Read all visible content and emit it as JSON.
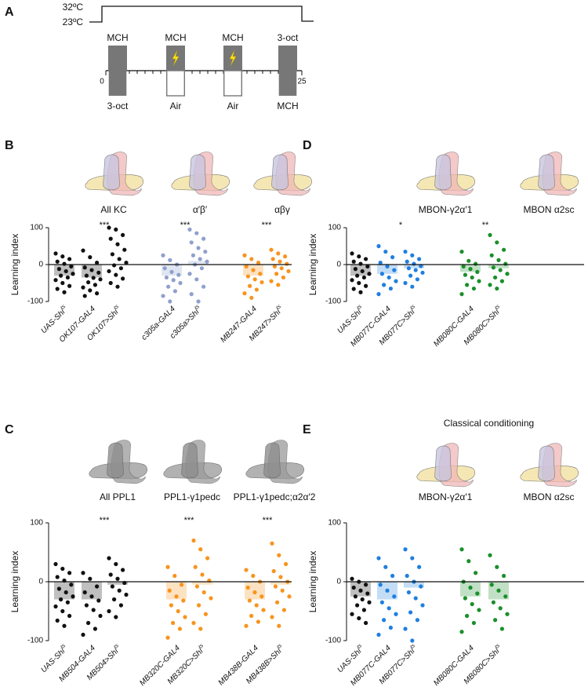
{
  "protocol": {
    "panel": "A",
    "temps": [
      "32ºC",
      "23ºC"
    ],
    "top_labels": [
      "MCH",
      "MCH",
      "MCH",
      "3-oct"
    ],
    "bottom_labels": [
      "3-oct",
      "Air",
      "Air",
      "MCH"
    ],
    "xlim": [
      0,
      25
    ],
    "xticks": [
      0,
      25
    ]
  },
  "chart_data": [
    {
      "type": "strip",
      "panel": "B",
      "icons": [
        "All KC",
        "α′β′",
        "αβγ"
      ],
      "ylabel": "Learning index",
      "ylim": [
        -100,
        100
      ],
      "yticks": [
        -100,
        0,
        100
      ],
      "categories": [
        "UAS-Shits",
        "OK107-GAL4",
        "OK107>Shits",
        "c305a-GAL4",
        "c305a>Shits",
        "MB247-GAL4",
        "MB247>Shits"
      ],
      "colors": [
        "#111111",
        "#111111",
        "#111111",
        "#8fa0cc",
        "#8fa0cc",
        "#f7941d",
        "#f7941d"
      ],
      "significance": [
        null,
        null,
        "***",
        null,
        "***",
        null,
        "***"
      ],
      "medians": [
        -30,
        -35,
        0,
        -30,
        10,
        -30,
        0
      ],
      "points": [
        [
          30,
          22,
          15,
          8,
          2,
          -5,
          -12,
          -18,
          -25,
          -30,
          -35,
          -42,
          -50,
          -58,
          -66,
          -75
        ],
        [
          38,
          20,
          5,
          -8,
          -15,
          -22,
          -30,
          -36,
          -40,
          -48,
          -55,
          -62,
          -70,
          -78,
          -85
        ],
        [
          100,
          95,
          80,
          70,
          55,
          40,
          28,
          15,
          5,
          -2,
          -10,
          -18,
          -28,
          -38,
          -50,
          -60
        ],
        [
          25,
          12,
          0,
          -10,
          -20,
          -28,
          -35,
          -42,
          -50,
          -60,
          -72,
          -85,
          -100
        ],
        [
          95,
          85,
          70,
          60,
          45,
          35,
          25,
          15,
          8,
          0,
          -10,
          -25,
          -40,
          -60,
          -80,
          -100
        ],
        [
          25,
          15,
          5,
          -5,
          -15,
          -25,
          -32,
          -40,
          -48,
          -58,
          -68,
          -78,
          -90
        ],
        [
          40,
          30,
          22,
          15,
          8,
          2,
          -5,
          -10,
          -18,
          -25,
          -35,
          -45,
          -55
        ]
      ]
    },
    {
      "type": "strip",
      "panel": "D",
      "icons": [
        "MBON-γ2α′1",
        "MBON α2sc"
      ],
      "ylabel": "Learning index",
      "ylim": [
        -100,
        100
      ],
      "yticks": [
        -100,
        0,
        100
      ],
      "categories": [
        "UAS-Shits",
        "MB077C-GAL4",
        "MB077C>Shits",
        "MB080C-GAL4",
        "MB080C>Shits"
      ],
      "colors": [
        "#111111",
        "#1f7fe0",
        "#1f7fe0",
        "#1a8f2a",
        "#1a8f2a"
      ],
      "significance": [
        null,
        null,
        "*",
        null,
        "**"
      ],
      "medians": [
        -30,
        -25,
        -10,
        -20,
        -10
      ],
      "points": [
        [
          30,
          22,
          15,
          8,
          2,
          -5,
          -12,
          -18,
          -25,
          -30,
          -35,
          -42,
          -50,
          -58,
          -66,
          -75
        ],
        [
          50,
          35,
          20,
          5,
          -5,
          -15,
          -25,
          -35,
          -45,
          -55,
          -65,
          -80
        ],
        [
          35,
          25,
          15,
          8,
          2,
          -4,
          -10,
          -15,
          -22,
          -30,
          -40,
          -50,
          -60
        ],
        [
          35,
          10,
          2,
          -5,
          -12,
          -20,
          -28,
          -35,
          -45,
          -55,
          -65,
          -80
        ],
        [
          80,
          60,
          40,
          25,
          12,
          2,
          -8,
          -15,
          -25,
          -35,
          -45,
          -55,
          -65
        ]
      ]
    },
    {
      "type": "strip",
      "panel": "C",
      "icons": [
        "All PPL1",
        "PPL1-γ1pedc",
        "PPL1-γ1pedc;α2α′2"
      ],
      "ylabel": "Learning index",
      "ylim": [
        -100,
        100
      ],
      "yticks": [
        -100,
        0,
        100
      ],
      "categories": [
        "UAS-Shits",
        "MB504-GAL4",
        "MB504>Shits",
        "MB320C-GAL4",
        "MB320C>Shits",
        "MB438B-GAL4",
        "MB438B>Shits"
      ],
      "colors": [
        "#111111",
        "#111111",
        "#111111",
        "#f7941d",
        "#f7941d",
        "#f7941d",
        "#f7941d"
      ],
      "significance": [
        null,
        null,
        "***",
        null,
        "***",
        null,
        "***"
      ],
      "medians": [
        -30,
        -30,
        -5,
        -30,
        -5,
        -30,
        -5
      ],
      "points": [
        [
          30,
          22,
          15,
          8,
          2,
          -5,
          -12,
          -18,
          -25,
          -30,
          -35,
          -42,
          -50,
          -58,
          -66,
          -75
        ],
        [
          15,
          5,
          -8,
          -18,
          -25,
          -32,
          -40,
          -48,
          -58,
          -70,
          -80,
          -90
        ],
        [
          40,
          30,
          20,
          12,
          5,
          -2,
          -8,
          -15,
          -22,
          -30,
          -40,
          -50,
          -60
        ],
        [
          25,
          10,
          -5,
          -15,
          -25,
          -32,
          -40,
          -50,
          -60,
          -70,
          -80,
          -95
        ],
        [
          70,
          55,
          40,
          25,
          12,
          2,
          -8,
          -18,
          -28,
          -40,
          -55,
          -70,
          -80
        ],
        [
          20,
          10,
          0,
          -10,
          -18,
          -25,
          -32,
          -40,
          -48,
          -58,
          -68,
          -75
        ],
        [
          65,
          45,
          30,
          18,
          8,
          0,
          -8,
          -15,
          -25,
          -35,
          -48,
          -60,
          -75
        ]
      ]
    },
    {
      "type": "strip",
      "panel": "E",
      "title": "Classical conditioning",
      "icons": [
        "MBON-γ2α′1",
        "MBON α2sc"
      ],
      "ylabel": "Learning index",
      "ylim": [
        -100,
        100
      ],
      "yticks": [
        -100,
        0,
        100
      ],
      "categories": [
        "UAS-Shits",
        "MB077C-GAL4",
        "MB077C>Shits",
        "MB080C-GAL4",
        "MB080C>Shits"
      ],
      "colors": [
        "#111111",
        "#1f7fe0",
        "#1f7fe0",
        "#1a8f2a",
        "#1a8f2a"
      ],
      "medians": [
        -25,
        -30,
        -10,
        -25,
        -30
      ],
      "points": [
        [
          5,
          0,
          -5,
          -10,
          -15,
          -20,
          -25,
          -30,
          -35,
          -40,
          -48,
          -55,
          -62,
          -70
        ],
        [
          40,
          25,
          10,
          -5,
          -15,
          -25,
          -35,
          -45,
          -55,
          -65,
          -78,
          -90
        ],
        [
          55,
          40,
          25,
          10,
          0,
          -8,
          -18,
          -28,
          -40,
          -52,
          -65,
          -80,
          -100
        ],
        [
          55,
          35,
          15,
          0,
          -10,
          -20,
          -28,
          -38,
          -48,
          -58,
          -70,
          -85
        ],
        [
          45,
          25,
          10,
          -5,
          -15,
          -25,
          -35,
          -45,
          -55,
          -65,
          -80
        ]
      ]
    }
  ]
}
